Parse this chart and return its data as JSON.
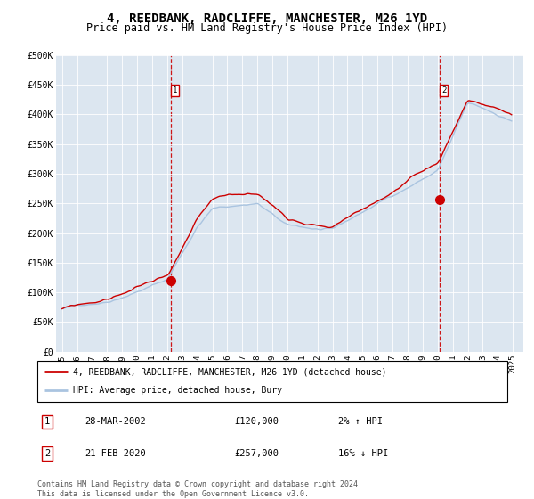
{
  "title": "4, REEDBANK, RADCLIFFE, MANCHESTER, M26 1YD",
  "subtitle": "Price paid vs. HM Land Registry's House Price Index (HPI)",
  "title_fontsize": 10,
  "subtitle_fontsize": 8.5,
  "background_color": "#dce6f0",
  "plot_bg_color": "#dce6f0",
  "hpi_color": "#aac4e0",
  "price_color": "#cc0000",
  "ylim": [
    0,
    500000
  ],
  "yticks": [
    0,
    50000,
    100000,
    150000,
    200000,
    250000,
    300000,
    350000,
    400000,
    450000,
    500000
  ],
  "ytick_labels": [
    "£0",
    "£50K",
    "£100K",
    "£150K",
    "£200K",
    "£250K",
    "£300K",
    "£350K",
    "£400K",
    "£450K",
    "£500K"
  ],
  "x_start_year": 1995,
  "x_end_year": 2025,
  "sale1_date": 2002.23,
  "sale1_price": 120000,
  "sale1_label": "1",
  "sale2_date": 2020.13,
  "sale2_price": 257000,
  "sale2_label": "2",
  "legend_line1": "4, REEDBANK, RADCLIFFE, MANCHESTER, M26 1YD (detached house)",
  "legend_line2": "HPI: Average price, detached house, Bury",
  "table_row1": [
    "1",
    "28-MAR-2002",
    "£120,000",
    "2% ↑ HPI"
  ],
  "table_row2": [
    "2",
    "21-FEB-2020",
    "£257,000",
    "16% ↓ HPI"
  ],
  "footer": "Contains HM Land Registry data © Crown copyright and database right 2024.\nThis data is licensed under the Open Government Licence v3.0.",
  "marker_size": 7
}
